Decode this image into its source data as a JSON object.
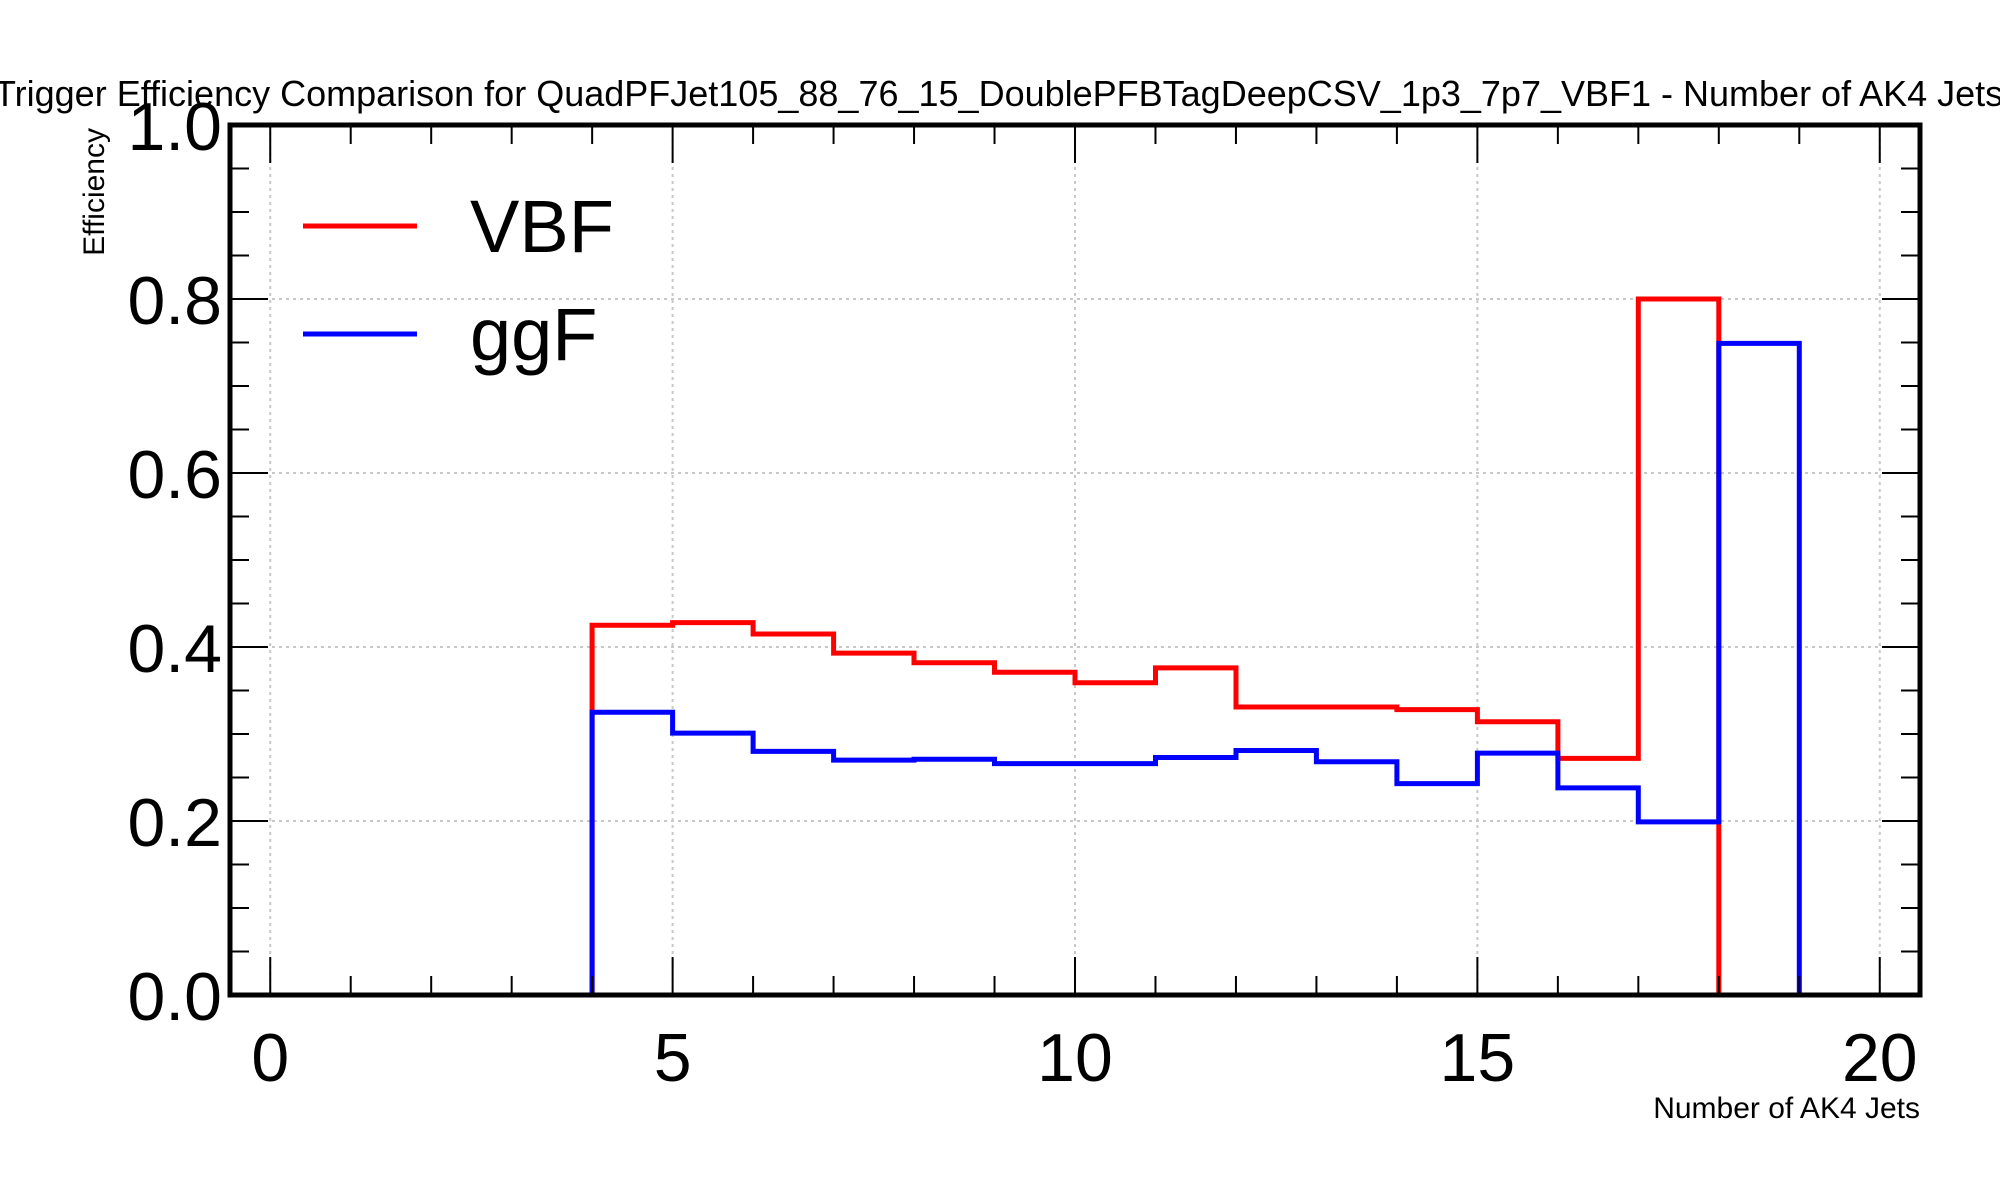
{
  "chart_data": {
    "type": "line",
    "title": "Trigger Efficiency Comparison for QuadPFJet105_88_76_15_DoublePFBTagDeepCSV_1p3_7p7_VBF1 - Number of AK4 Jets",
    "xlabel": "Number of AK4 Jets",
    "ylabel": "Efficiency",
    "xlim": [
      -0.5,
      20.5
    ],
    "ylim": [
      0.0,
      1.0
    ],
    "xticks": [
      0,
      5,
      10,
      15,
      20
    ],
    "xtick_labels": [
      "0",
      "5",
      "10",
      "15",
      "20"
    ],
    "yticks": [
      0.0,
      0.2,
      0.4,
      0.6,
      0.8,
      1.0
    ],
    "ytick_labels": [
      "0.0",
      "0.2",
      "0.4",
      "0.6",
      "0.8",
      "1.0"
    ],
    "grid": true,
    "legend_position": "top-left",
    "bin_edges": [
      0,
      1,
      2,
      3,
      4,
      5,
      6,
      7,
      8,
      9,
      10,
      11,
      12,
      13,
      14,
      15,
      16,
      17,
      18,
      19,
      20
    ],
    "series": [
      {
        "name": "VBF",
        "color": "#ff0000",
        "values": [
          0,
          0,
          0,
          0,
          0.425,
          0.428,
          0.415,
          0.393,
          0.382,
          0.371,
          0.359,
          0.376,
          0.331,
          0.331,
          0.328,
          0.314,
          0.272,
          0.8,
          0,
          0
        ]
      },
      {
        "name": "ggF",
        "color": "#0000ff",
        "values": [
          0,
          0,
          0,
          0,
          0.325,
          0.301,
          0.28,
          0.27,
          0.271,
          0.266,
          0.266,
          0.273,
          0.281,
          0.268,
          0.243,
          0.278,
          0.238,
          0.199,
          0.749,
          0
        ]
      }
    ]
  }
}
